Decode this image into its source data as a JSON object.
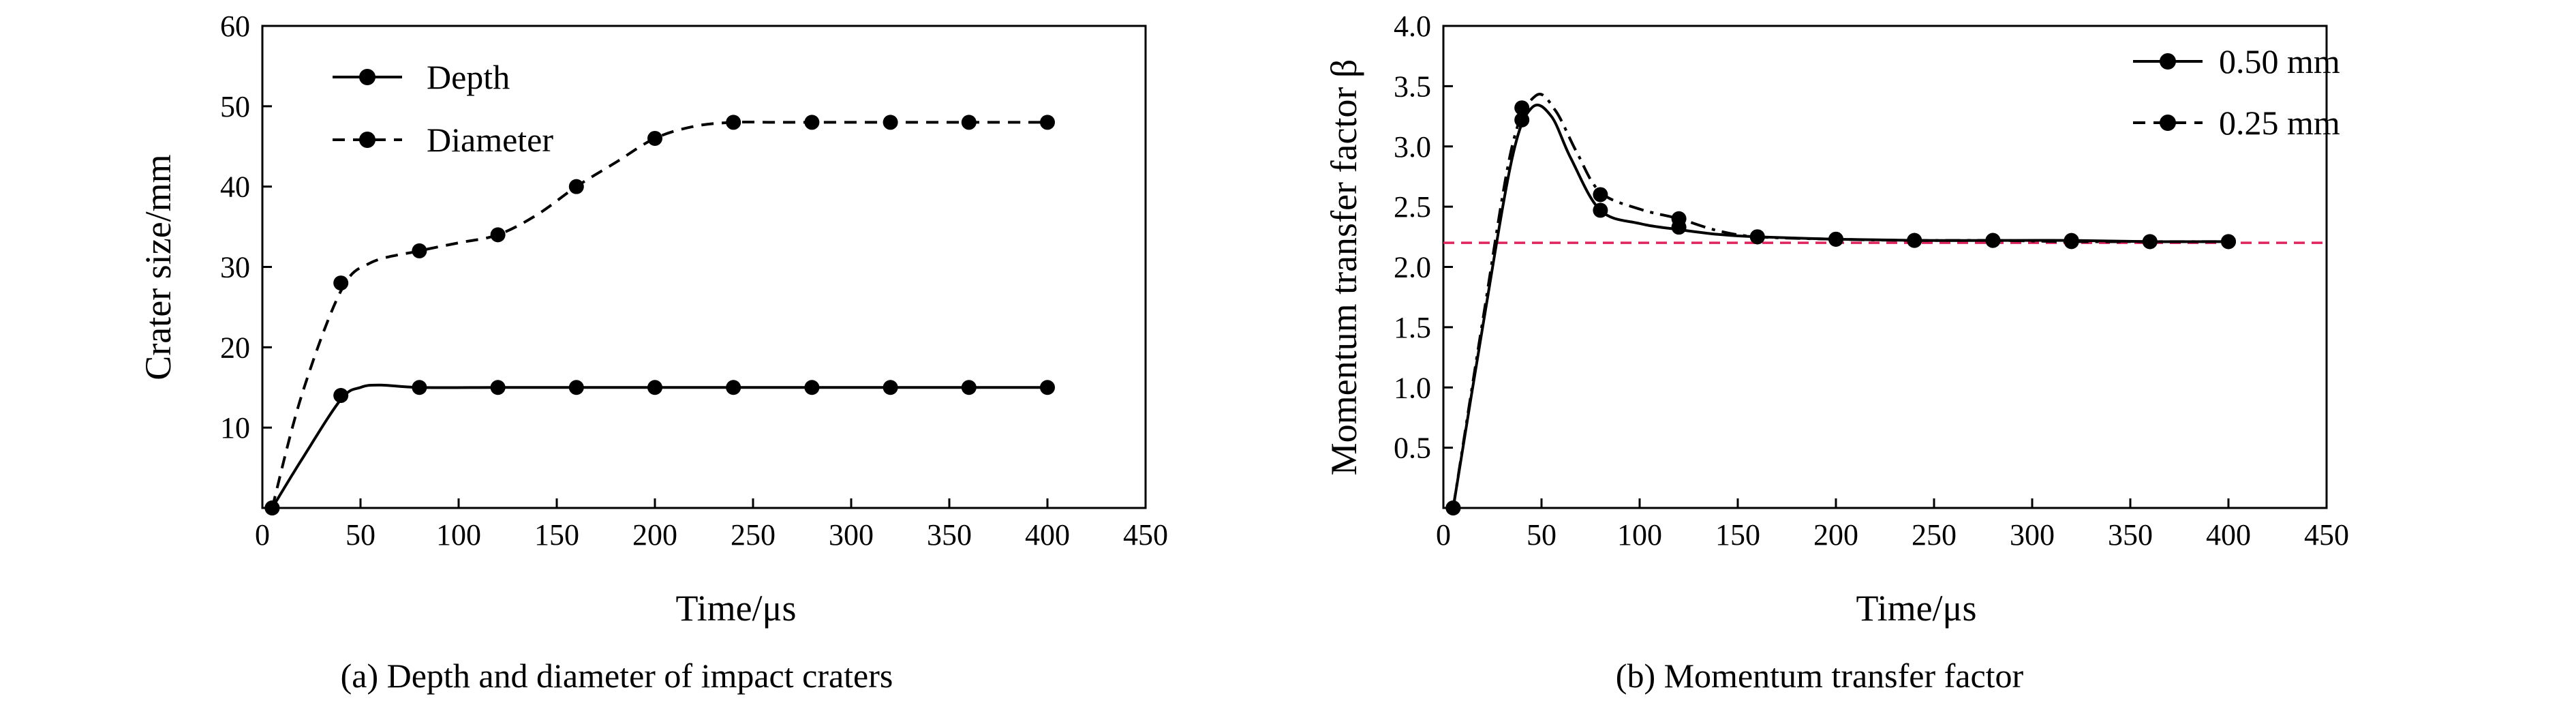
{
  "chart_data": [
    {
      "type": "line",
      "xlabel": "Time/μs",
      "ylabel": "Crater size/mm",
      "caption": "(a) Depth and diameter of impact craters",
      "xlim": [
        0,
        450
      ],
      "ylim": [
        0,
        60
      ],
      "xticks": [
        0,
        50,
        100,
        150,
        200,
        250,
        300,
        350,
        400,
        450
      ],
      "yticks": [
        10,
        20,
        30,
        40,
        50,
        60
      ],
      "grid": false,
      "legend_position": "top-left",
      "series": [
        {
          "name": "Depth",
          "style": "solid",
          "marker": "circle",
          "x": [
            5,
            40,
            80,
            120,
            160,
            200,
            240,
            280,
            320,
            360,
            400
          ],
          "y": [
            0,
            14,
            15,
            15,
            15,
            15,
            15,
            15,
            15,
            15,
            15
          ],
          "curve_x": [
            5,
            20,
            40,
            50,
            60,
            80,
            120,
            160,
            200,
            240,
            280,
            320,
            360,
            400
          ],
          "curve_y": [
            0,
            6,
            13.5,
            15,
            15.3,
            15,
            15,
            15,
            15,
            15,
            15,
            15,
            15,
            15
          ]
        },
        {
          "name": "Diameter",
          "style": "dashed",
          "marker": "circle",
          "x": [
            5,
            40,
            80,
            120,
            160,
            200,
            240,
            280,
            320,
            360,
            400
          ],
          "y": [
            0,
            28,
            32,
            34,
            40,
            46,
            48,
            48,
            48,
            48,
            48
          ],
          "curve_x": [
            5,
            20,
            40,
            55,
            80,
            100,
            120,
            140,
            160,
            180,
            200,
            220,
            240,
            260,
            280,
            320,
            360,
            400
          ],
          "curve_y": [
            0,
            14,
            27,
            30.5,
            32,
            33,
            34,
            36.5,
            40,
            43,
            46,
            47.5,
            48,
            48,
            48,
            48,
            48,
            48
          ]
        }
      ]
    },
    {
      "type": "line",
      "xlabel": "Time/μs",
      "ylabel": "Momentum transfer factor β",
      "caption": "(b) Momentum transfer factor",
      "xlim": [
        0,
        450
      ],
      "ylim": [
        0,
        4.0
      ],
      "xticks": [
        0,
        50,
        100,
        150,
        200,
        250,
        300,
        350,
        400,
        450
      ],
      "yticks": [
        0.5,
        1.0,
        1.5,
        2.0,
        2.5,
        3.0,
        3.5,
        4.0
      ],
      "grid": false,
      "legend_position": "top-right",
      "reference_line": {
        "y": 2.2,
        "style": "dashed",
        "color": "#e0245e"
      },
      "series": [
        {
          "name": "0.50 mm",
          "style": "solid",
          "marker": "circle",
          "x": [
            5,
            40,
            80,
            120,
            160,
            200,
            240,
            280,
            320,
            360,
            400
          ],
          "y": [
            0,
            3.22,
            2.47,
            2.33,
            2.25,
            2.23,
            2.22,
            2.22,
            2.22,
            2.21,
            2.21
          ],
          "curve_x": [
            5,
            20,
            35,
            45,
            55,
            65,
            80,
            100,
            120,
            140,
            160,
            200,
            240,
            280,
            320,
            360,
            400
          ],
          "curve_y": [
            0,
            1.5,
            2.9,
            3.32,
            3.25,
            2.9,
            2.47,
            2.36,
            2.31,
            2.27,
            2.25,
            2.23,
            2.22,
            2.22,
            2.22,
            2.21,
            2.21
          ]
        },
        {
          "name": "0.25 mm",
          "style": "dashdot",
          "marker": "circle",
          "x": [
            5,
            40,
            80,
            120,
            160,
            200,
            240,
            280,
            320,
            360,
            400
          ],
          "y": [
            0,
            3.32,
            2.6,
            2.4,
            2.25,
            2.23,
            2.22,
            2.22,
            2.21,
            2.21,
            2.21
          ],
          "curve_x": [
            5,
            20,
            35,
            47,
            57,
            68,
            80,
            100,
            120,
            140,
            160,
            200,
            240,
            280,
            320,
            360,
            400
          ],
          "curve_y": [
            0,
            1.55,
            3.0,
            3.42,
            3.3,
            2.95,
            2.62,
            2.48,
            2.4,
            2.3,
            2.25,
            2.23,
            2.22,
            2.22,
            2.21,
            2.21,
            2.21
          ]
        }
      ]
    }
  ]
}
